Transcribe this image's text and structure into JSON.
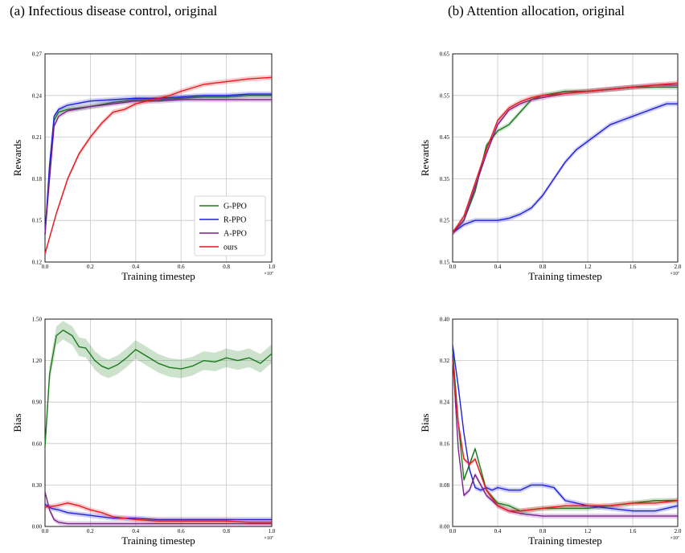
{
  "titles": {
    "a": "(a) Infectious disease control, original",
    "b": "(b) Attention allocation, original"
  },
  "colors": {
    "G-PPO": "#1b7a1b",
    "R-PPO": "#1f1fdd",
    "A-PPO": "#7b1f8c",
    "ours": "#e8191f"
  },
  "chart_data": [
    {
      "type": "line",
      "panel": "a-top",
      "xlabel": "Training timestep",
      "ylabel": "Rewards",
      "x_exponent": "×10⁷",
      "xlim": [
        0,
        1.0
      ],
      "ylim": [
        0.12,
        0.27
      ],
      "xticks": [
        "0.0",
        "0.2",
        "0.4",
        "0.6",
        "0.8",
        "1.0"
      ],
      "yticks": [
        "0.12",
        "0.15",
        "0.18",
        "0.21",
        "0.24",
        "0.27"
      ],
      "grid": true,
      "legend": "lower-right",
      "series": [
        {
          "name": "G-PPO",
          "x": [
            0,
            0.02,
            0.04,
            0.06,
            0.1,
            0.2,
            0.3,
            0.4,
            0.5,
            0.6,
            0.7,
            0.8,
            0.9,
            1.0
          ],
          "y": [
            0.14,
            0.185,
            0.222,
            0.228,
            0.23,
            0.232,
            0.235,
            0.237,
            0.237,
            0.238,
            0.239,
            0.239,
            0.24,
            0.24
          ]
        },
        {
          "name": "R-PPO",
          "x": [
            0,
            0.02,
            0.04,
            0.06,
            0.1,
            0.2,
            0.3,
            0.4,
            0.5,
            0.6,
            0.7,
            0.8,
            0.9,
            1.0
          ],
          "y": [
            0.14,
            0.19,
            0.225,
            0.23,
            0.233,
            0.236,
            0.237,
            0.238,
            0.238,
            0.239,
            0.24,
            0.24,
            0.241,
            0.241
          ]
        },
        {
          "name": "A-PPO",
          "x": [
            0,
            0.02,
            0.04,
            0.06,
            0.1,
            0.2,
            0.3,
            0.4,
            0.5,
            0.6,
            0.7,
            0.8,
            0.9,
            1.0
          ],
          "y": [
            0.14,
            0.18,
            0.218,
            0.225,
            0.229,
            0.232,
            0.234,
            0.236,
            0.236,
            0.237,
            0.237,
            0.237,
            0.237,
            0.237
          ]
        },
        {
          "name": "ours",
          "x": [
            0,
            0.05,
            0.1,
            0.15,
            0.2,
            0.25,
            0.3,
            0.35,
            0.4,
            0.45,
            0.5,
            0.55,
            0.6,
            0.7,
            0.8,
            0.9,
            1.0
          ],
          "y": [
            0.126,
            0.155,
            0.18,
            0.198,
            0.21,
            0.22,
            0.228,
            0.23,
            0.234,
            0.236,
            0.238,
            0.24,
            0.243,
            0.248,
            0.25,
            0.252,
            0.253
          ]
        }
      ]
    },
    {
      "type": "line",
      "panel": "a-bottom",
      "xlabel": "Training timestep",
      "ylabel": "Bias",
      "x_exponent": "×10⁷",
      "xlim": [
        0,
        1.0
      ],
      "ylim": [
        0,
        1.5
      ],
      "xticks": [
        "0.0",
        "0.2",
        "0.4",
        "0.6",
        "0.8",
        "1.0"
      ],
      "yticks": [
        "0.00",
        "0.30",
        "0.60",
        "0.90",
        "1.20",
        "1.50"
      ],
      "grid": true,
      "series": [
        {
          "name": "G-PPO",
          "x": [
            0,
            0.02,
            0.05,
            0.08,
            0.12,
            0.15,
            0.18,
            0.22,
            0.25,
            0.28,
            0.32,
            0.36,
            0.4,
            0.43,
            0.47,
            0.5,
            0.55,
            0.6,
            0.65,
            0.7,
            0.75,
            0.8,
            0.85,
            0.9,
            0.95,
            1.0
          ],
          "y": [
            0.58,
            1.1,
            1.38,
            1.42,
            1.38,
            1.3,
            1.29,
            1.2,
            1.16,
            1.14,
            1.17,
            1.22,
            1.28,
            1.25,
            1.21,
            1.18,
            1.15,
            1.14,
            1.16,
            1.2,
            1.19,
            1.22,
            1.2,
            1.22,
            1.18,
            1.25
          ]
        },
        {
          "name": "R-PPO",
          "x": [
            0,
            0.03,
            0.06,
            0.1,
            0.2,
            0.3,
            0.4,
            0.5,
            0.6,
            0.7,
            0.8,
            0.9,
            1.0
          ],
          "y": [
            0.16,
            0.13,
            0.12,
            0.1,
            0.08,
            0.06,
            0.06,
            0.05,
            0.05,
            0.05,
            0.05,
            0.05,
            0.05
          ]
        },
        {
          "name": "A-PPO",
          "x": [
            0,
            0.02,
            0.04,
            0.06,
            0.1,
            0.2,
            0.4,
            0.6,
            0.8,
            1.0
          ],
          "y": [
            0.25,
            0.12,
            0.05,
            0.03,
            0.02,
            0.02,
            0.02,
            0.02,
            0.02,
            0.02
          ]
        },
        {
          "name": "ours",
          "x": [
            0,
            0.05,
            0.1,
            0.15,
            0.2,
            0.25,
            0.3,
            0.4,
            0.5,
            0.6,
            0.7,
            0.8,
            0.9,
            1.0
          ],
          "y": [
            0.14,
            0.15,
            0.17,
            0.15,
            0.12,
            0.1,
            0.07,
            0.05,
            0.04,
            0.04,
            0.04,
            0.04,
            0.03,
            0.03
          ]
        }
      ]
    },
    {
      "type": "line",
      "panel": "b-top",
      "xlabel": "Training timestep",
      "ylabel": "Rewards",
      "x_exponent": "×10⁷",
      "xlim": [
        0,
        2.0
      ],
      "ylim": [
        0.15,
        0.65
      ],
      "xticks": [
        "0.0",
        "0.4",
        "0.8",
        "1.2",
        "1.6",
        "2.0"
      ],
      "yticks": [
        "0.15",
        "0.25",
        "0.35",
        "0.45",
        "0.55",
        "0.65"
      ],
      "grid": true,
      "series": [
        {
          "name": "G-PPO",
          "x": [
            0,
            0.1,
            0.2,
            0.3,
            0.4,
            0.5,
            0.6,
            0.7,
            0.8,
            1.0,
            1.2,
            1.4,
            1.6,
            1.8,
            2.0
          ],
          "y": [
            0.22,
            0.25,
            0.32,
            0.43,
            0.465,
            0.48,
            0.51,
            0.54,
            0.55,
            0.56,
            0.56,
            0.565,
            0.57,
            0.57,
            0.57
          ]
        },
        {
          "name": "R-PPO",
          "x": [
            0,
            0.1,
            0.2,
            0.3,
            0.4,
            0.5,
            0.6,
            0.7,
            0.8,
            0.9,
            1.0,
            1.1,
            1.2,
            1.3,
            1.4,
            1.5,
            1.6,
            1.7,
            1.8,
            1.9,
            2.0
          ],
          "y": [
            0.22,
            0.24,
            0.25,
            0.25,
            0.25,
            0.255,
            0.265,
            0.28,
            0.31,
            0.35,
            0.39,
            0.42,
            0.44,
            0.46,
            0.48,
            0.49,
            0.5,
            0.51,
            0.52,
            0.53,
            0.53
          ]
        },
        {
          "name": "A-PPO",
          "x": [
            0,
            0.1,
            0.2,
            0.3,
            0.4,
            0.5,
            0.6,
            0.7,
            0.8,
            1.0,
            1.2,
            1.4,
            1.6,
            1.8,
            2.0
          ],
          "y": [
            0.22,
            0.25,
            0.33,
            0.41,
            0.48,
            0.515,
            0.53,
            0.54,
            0.545,
            0.555,
            0.56,
            0.565,
            0.57,
            0.575,
            0.575
          ]
        },
        {
          "name": "ours",
          "x": [
            0,
            0.1,
            0.2,
            0.3,
            0.4,
            0.5,
            0.6,
            0.7,
            0.8,
            1.0,
            1.2,
            1.4,
            1.6,
            1.8,
            2.0
          ],
          "y": [
            0.22,
            0.26,
            0.34,
            0.42,
            0.49,
            0.52,
            0.535,
            0.545,
            0.55,
            0.555,
            0.56,
            0.565,
            0.57,
            0.575,
            0.58
          ]
        }
      ]
    },
    {
      "type": "line",
      "panel": "b-bottom",
      "xlabel": "Training timestep",
      "ylabel": "Bias",
      "x_exponent": "×10⁷",
      "xlim": [
        0,
        2.0
      ],
      "ylim": [
        0,
        0.4
      ],
      "xticks": [
        "0.0",
        "0.4",
        "0.8",
        "1.2",
        "1.6",
        "2.0"
      ],
      "yticks": [
        "0.00",
        "0.08",
        "0.16",
        "0.24",
        "0.32",
        "0.40"
      ],
      "grid": true,
      "series": [
        {
          "name": "G-PPO",
          "x": [
            0,
            0.05,
            0.1,
            0.15,
            0.2,
            0.25,
            0.3,
            0.4,
            0.5,
            0.6,
            0.8,
            1.0,
            1.2,
            1.4,
            1.6,
            1.8,
            2.0
          ],
          "y": [
            0.34,
            0.2,
            0.09,
            0.12,
            0.15,
            0.11,
            0.07,
            0.045,
            0.04,
            0.03,
            0.035,
            0.035,
            0.035,
            0.04,
            0.045,
            0.05,
            0.05
          ]
        },
        {
          "name": "R-PPO",
          "x": [
            0,
            0.05,
            0.1,
            0.15,
            0.2,
            0.25,
            0.3,
            0.35,
            0.4,
            0.5,
            0.6,
            0.7,
            0.8,
            0.9,
            1.0,
            1.1,
            1.2,
            1.4,
            1.6,
            1.8,
            2.0
          ],
          "y": [
            0.35,
            0.27,
            0.18,
            0.11,
            0.075,
            0.07,
            0.075,
            0.07,
            0.075,
            0.07,
            0.07,
            0.08,
            0.08,
            0.075,
            0.05,
            0.045,
            0.04,
            0.035,
            0.03,
            0.03,
            0.04
          ]
        },
        {
          "name": "A-PPO",
          "x": [
            0,
            0.05,
            0.1,
            0.15,
            0.2,
            0.25,
            0.3,
            0.4,
            0.5,
            0.6,
            0.8,
            1.0,
            1.2,
            1.4,
            1.6,
            1.8,
            2.0
          ],
          "y": [
            0.33,
            0.15,
            0.06,
            0.07,
            0.1,
            0.08,
            0.06,
            0.04,
            0.03,
            0.025,
            0.02,
            0.02,
            0.02,
            0.02,
            0.02,
            0.02,
            0.02
          ]
        },
        {
          "name": "ours",
          "x": [
            0,
            0.05,
            0.1,
            0.15,
            0.2,
            0.25,
            0.3,
            0.4,
            0.5,
            0.6,
            0.8,
            1.0,
            1.2,
            1.4,
            1.6,
            1.8,
            2.0
          ],
          "y": [
            0.32,
            0.2,
            0.13,
            0.12,
            0.13,
            0.1,
            0.07,
            0.04,
            0.03,
            0.03,
            0.035,
            0.04,
            0.04,
            0.04,
            0.045,
            0.045,
            0.05
          ]
        }
      ]
    }
  ]
}
